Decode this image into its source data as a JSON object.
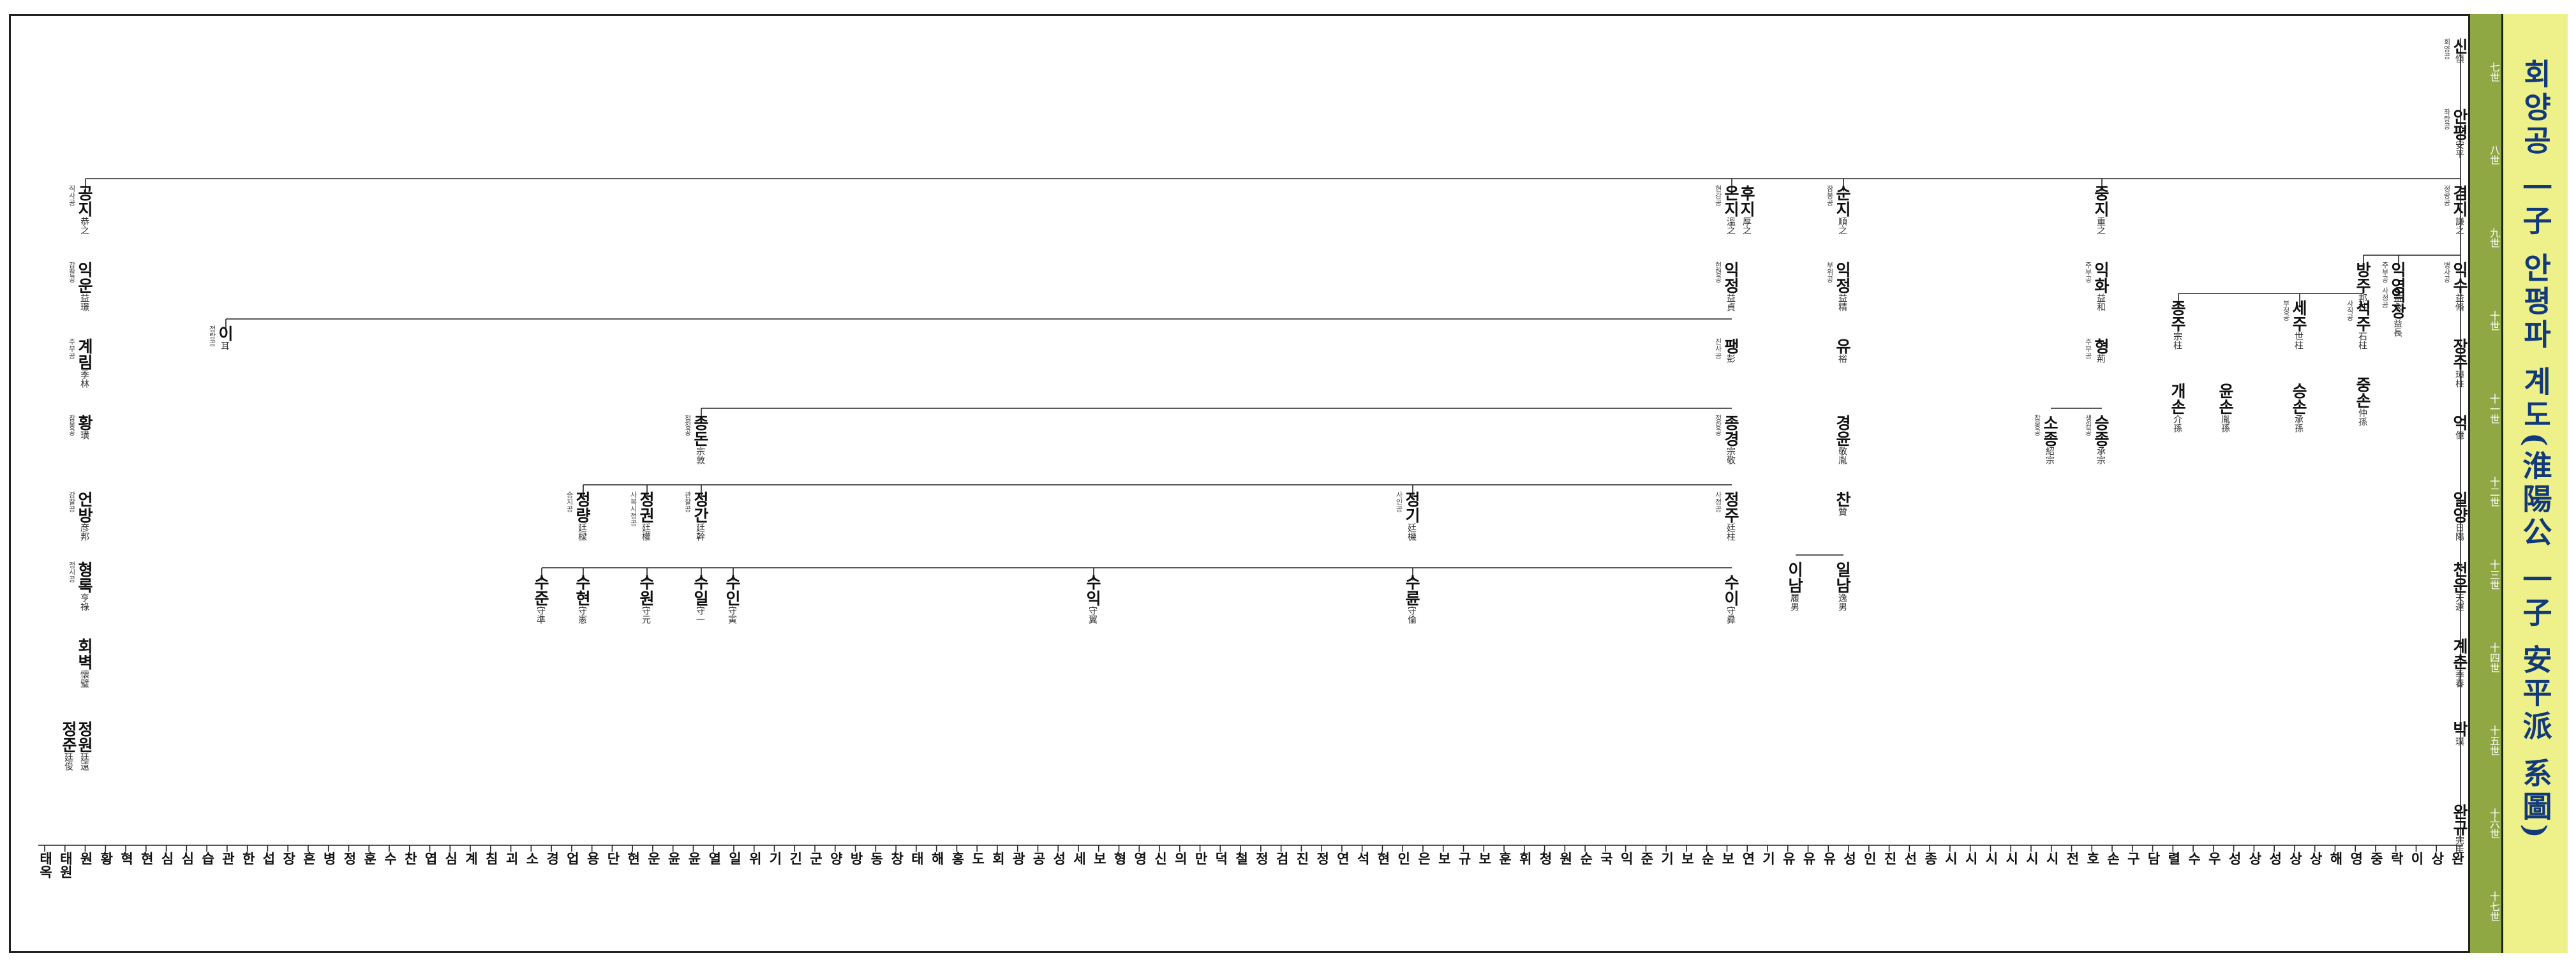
{
  "title": "회양공 一子 안평파 계도(淮陽公 一子 安平派 系圖)",
  "generations": [
    "七世",
    "八世",
    "九世",
    "十世",
    "十一世",
    "十二世",
    "十三世",
    "十四世",
    "十五世",
    "十六世",
    "十七世"
  ],
  "colors": {
    "title_bg": "#eef08a",
    "title_text": "#123a7a",
    "gen_bar": "#8fa843",
    "line": "#222222"
  },
  "people": [
    {
      "name": "신",
      "hanja": "愼",
      "title": "회양공"
    },
    {
      "name": "안평",
      "hanja": "安平",
      "title": "좌랑공"
    },
    {
      "name": "겸지",
      "hanja": "謙之",
      "title": "정랑공"
    },
    {
      "name": "익수",
      "hanja": "益脩",
      "title": "병사공"
    },
    {
      "name": "장주",
      "hanja": "璋柱",
      "title": ""
    },
    {
      "name": "억",
      "hanja": "億",
      "title": ""
    },
    {
      "name": "일양",
      "hanja": "日陽",
      "title": ""
    },
    {
      "name": "천운",
      "hanja": "天運",
      "title": ""
    },
    {
      "name": "계춘",
      "hanja": "季春",
      "title": ""
    },
    {
      "name": "박",
      "hanja": "璞",
      "title": ""
    },
    {
      "name": "완규",
      "hanja": "完圭",
      "title": ""
    },
    {
      "name": "익영",
      "hanja": "益永",
      "title": "주부공"
    },
    {
      "name": "방주",
      "hanja": "邦柱",
      "title": ""
    },
    {
      "name": "익장",
      "hanja": "益長",
      "title": "사정공"
    },
    {
      "name": "석주",
      "hanja": "石柱",
      "title": "사직공"
    },
    {
      "name": "중손",
      "hanja": "仲孫",
      "title": ""
    },
    {
      "name": "세주",
      "hanja": "世柱",
      "title": "부정공"
    },
    {
      "name": "승손",
      "hanja": "承孫",
      "title": ""
    },
    {
      "name": "윤손",
      "hanja": "胤孫",
      "title": ""
    },
    {
      "name": "종주",
      "hanja": "宗柱",
      "title": ""
    },
    {
      "name": "개손",
      "hanja": "介孫",
      "title": ""
    },
    {
      "name": "중지",
      "hanja": "重之",
      "title": ""
    },
    {
      "name": "익화",
      "hanja": "益和",
      "title": "주부공"
    },
    {
      "name": "형",
      "hanja": "荊",
      "title": "주부공"
    },
    {
      "name": "승종",
      "hanja": "承宗",
      "title": "생원공"
    },
    {
      "name": "소종",
      "hanja": "紹宗",
      "title": "참봉공"
    },
    {
      "name": "순지",
      "hanja": "順之",
      "title": "참봉공"
    },
    {
      "name": "익정",
      "hanja": "益精",
      "title": "부위공"
    },
    {
      "name": "유",
      "hanja": "裕",
      "title": ""
    },
    {
      "name": "경윤",
      "hanja": "敬胤",
      "title": ""
    },
    {
      "name": "찬",
      "hanja": "贊",
      "title": ""
    },
    {
      "name": "일남",
      "hanja": "逸男",
      "title": ""
    },
    {
      "name": "이남",
      "hanja": "履男",
      "title": ""
    },
    {
      "name": "후지",
      "hanja": "厚之",
      "title": ""
    },
    {
      "name": "온지",
      "hanja": "溫之",
      "title": "현감공"
    },
    {
      "name": "익정",
      "hanja": "益貞",
      "title": "현령공"
    },
    {
      "name": "팽",
      "hanja": "彭",
      "title": "진사공"
    },
    {
      "name": "종경",
      "hanja": "宗敬",
      "title": "정랑공"
    },
    {
      "name": "정주",
      "hanja": "廷柱",
      "title": "사정공"
    },
    {
      "name": "수이",
      "hanja": "守彛",
      "title": ""
    },
    {
      "name": "정기",
      "hanja": "廷機",
      "title": "사인공"
    },
    {
      "name": "수륜",
      "hanja": "守倫",
      "title": ""
    },
    {
      "name": "수익",
      "hanja": "守翼",
      "title": ""
    },
    {
      "name": "종돈",
      "hanja": "宗敦",
      "title": "첨정공"
    },
    {
      "name": "정간",
      "hanja": "廷幹",
      "title": "관찰공"
    },
    {
      "name": "수일",
      "hanja": "守一",
      "title": ""
    },
    {
      "name": "수인",
      "hanja": "守寅",
      "title": ""
    },
    {
      "name": "정권",
      "hanja": "廷權",
      "title": "사복시정공"
    },
    {
      "name": "수원",
      "hanja": "守元",
      "title": ""
    },
    {
      "name": "정량",
      "hanja": "廷樑",
      "title": "승지공"
    },
    {
      "name": "수현",
      "hanja": "守憲",
      "title": ""
    },
    {
      "name": "수준",
      "hanja": "守準",
      "title": ""
    },
    {
      "name": "이",
      "hanja": "耳",
      "title": "정랑공"
    },
    {
      "name": "공지",
      "hanja": "恭之",
      "title": "직사공"
    },
    {
      "name": "익운",
      "hanja": "益璟",
      "title": "감찰공"
    },
    {
      "name": "계림",
      "hanja": "季林",
      "title": "주부공"
    },
    {
      "name": "황",
      "hanja": "璜",
      "title": "참봉공"
    },
    {
      "name": "언방",
      "hanja": "彦邦",
      "title": "감찰공"
    },
    {
      "name": "형록",
      "hanja": "亨祿",
      "title": "정시공"
    },
    {
      "name": "회벽",
      "hanja": "懷璧",
      "title": ""
    },
    {
      "name": "정원",
      "hanja": "廷遠",
      "title": ""
    },
    {
      "name": "정준",
      "hanja": "廷俊",
      "title": ""
    }
  ],
  "leaves": [
    "태옥",
    "태원",
    "원",
    "황",
    "혁",
    "현",
    "심",
    "심",
    "습",
    "관",
    "한",
    "섭",
    "장",
    "흔",
    "병",
    "정",
    "훈",
    "수",
    "찬",
    "엽",
    "심",
    "계",
    "침",
    "괴",
    "소",
    "경",
    "업",
    "용",
    "단",
    "현",
    "운",
    "윤",
    "윤",
    "열",
    "일",
    "위",
    "기",
    "긴",
    "군",
    "양",
    "방",
    "동",
    "창",
    "태",
    "해",
    "홍",
    "도",
    "회",
    "광",
    "공",
    "성",
    "세",
    "보",
    "형",
    "영",
    "신",
    "의",
    "만",
    "덕",
    "철",
    "정",
    "검",
    "진",
    "정",
    "연",
    "석",
    "현",
    "인",
    "은",
    "보",
    "규",
    "보",
    "훈",
    "휘",
    "청",
    "원",
    "순",
    "국",
    "익",
    "준",
    "기",
    "보",
    "순",
    "보",
    "연",
    "기",
    "유",
    "유",
    "유",
    "성",
    "인",
    "진",
    "선",
    "종",
    "시",
    "시",
    "시",
    "시",
    "시",
    "시",
    "전",
    "호",
    "손",
    "구",
    "담",
    "렬",
    "수",
    "우",
    "성",
    "상",
    "성",
    "상",
    "상",
    "해",
    "영",
    "중",
    "락",
    "이",
    "상",
    "완"
  ]
}
